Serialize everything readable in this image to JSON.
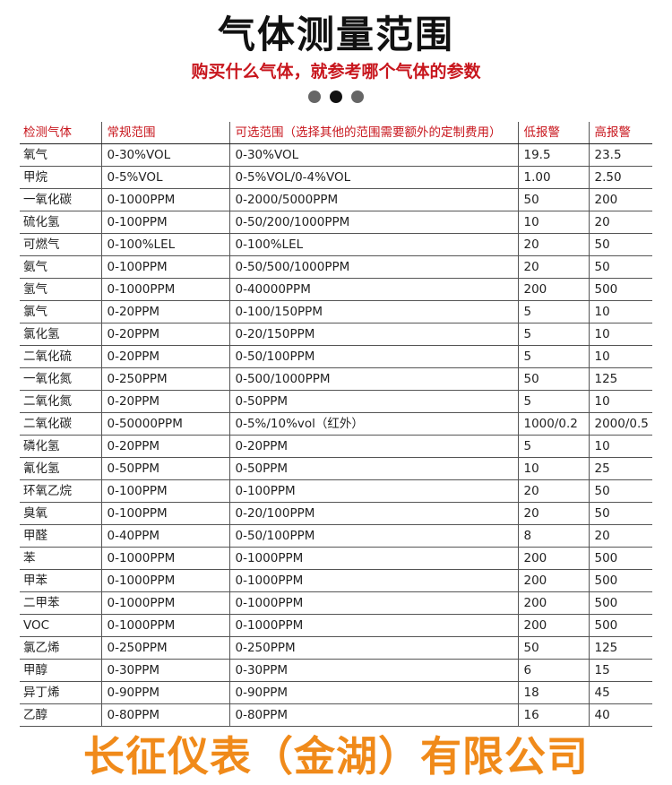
{
  "title": "气体测量范围",
  "subtitle": "购买什么气体，就参考哪个气体的参数",
  "dots": [
    {
      "color": "#666666"
    },
    {
      "color": "#111111"
    },
    {
      "color": "#666666"
    }
  ],
  "accent": "#c8161d",
  "watermark": "长征仪表（金湖）有限公司",
  "headers": [
    "检测气体",
    "常规范围",
    "可选范围（选择其他的范围需要额外的定制费用）",
    "低报警",
    "高报警"
  ],
  "rows": [
    [
      "氧气",
      "0-30%VOL",
      "0-30%VOL",
      "19.5",
      "23.5"
    ],
    [
      "甲烷",
      "0-5%VOL",
      "0-5%VOL/0-4%VOL",
      "1.00",
      "2.50"
    ],
    [
      "一氧化碳",
      "0-1000PPM",
      "0-2000/5000PPM",
      "50",
      "200"
    ],
    [
      "硫化氢",
      "0-100PPM",
      "0-50/200/1000PPM",
      "10",
      "20"
    ],
    [
      "可燃气",
      "0-100%LEL",
      "0-100%LEL",
      "20",
      "50"
    ],
    [
      "氨气",
      "0-100PPM",
      "0-50/500/1000PPM",
      "20",
      "50"
    ],
    [
      "氢气",
      "0-1000PPM",
      "0-40000PPM",
      "200",
      "500"
    ],
    [
      "氯气",
      "0-20PPM",
      "0-100/150PPM",
      "5",
      "10"
    ],
    [
      "氯化氢",
      "0-20PPM",
      "0-20/150PPM",
      "5",
      "10"
    ],
    [
      "二氧化硫",
      "0-20PPM",
      "0-50/100PPM",
      "5",
      "10"
    ],
    [
      "一氧化氮",
      "0-250PPM",
      "0-500/1000PPM",
      "50",
      "125"
    ],
    [
      "二氧化氮",
      "0-20PPM",
      "0-50PPM",
      "5",
      "10"
    ],
    [
      "二氧化碳",
      "0-50000PPM",
      "0-5%/10%vol（红外）",
      "1000/0.2",
      "2000/0.5"
    ],
    [
      "磷化氢",
      "0-20PPM",
      "0-20PPM",
      "5",
      "10"
    ],
    [
      "氰化氢",
      "0-50PPM",
      "0-50PPM",
      "10",
      "25"
    ],
    [
      "环氧乙烷",
      "0-100PPM",
      "0-100PPM",
      "20",
      "50"
    ],
    [
      "臭氧",
      "0-100PPM",
      "0-20/100PPM",
      "20",
      "50"
    ],
    [
      "甲醛",
      "0-40PPM",
      "0-50/100PPM",
      "8",
      "20"
    ],
    [
      "苯",
      "0-1000PPM",
      "0-1000PPM",
      "200",
      "500"
    ],
    [
      "甲苯",
      "0-1000PPM",
      "0-1000PPM",
      "200",
      "500"
    ],
    [
      "二甲苯",
      "0-1000PPM",
      "0-1000PPM",
      "200",
      "500"
    ],
    [
      "VOC",
      "0-1000PPM",
      "0-1000PPM",
      "200",
      "500"
    ],
    [
      "氯乙烯",
      "0-250PPM",
      "0-250PPM",
      "50",
      "125"
    ],
    [
      "甲醇",
      "0-30PPM",
      "0-30PPM",
      "6",
      "15"
    ],
    [
      "异丁烯",
      "0-90PPM",
      "0-90PPM",
      "18",
      "45"
    ],
    [
      "乙醇",
      "0-80PPM",
      "0-80PPM",
      "16",
      "40"
    ]
  ]
}
